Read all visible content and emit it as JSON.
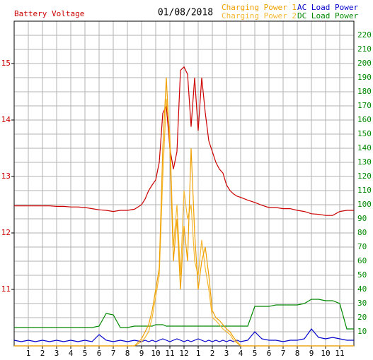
{
  "chart_data": {
    "type": "line",
    "date": "01/08/2018",
    "x": [
      0,
      0.5,
      1,
      1.5,
      2,
      2.5,
      3,
      3.5,
      4,
      4.5,
      5,
      5.5,
      6,
      6.5,
      7,
      7.5,
      8,
      8.5,
      9,
      9.25,
      9.5,
      9.75,
      10,
      10.25,
      10.5,
      10.75,
      11,
      11.25,
      11.5,
      11.75,
      12,
      12.25,
      12.5,
      12.75,
      13,
      13.25,
      13.5,
      13.75,
      14,
      14.25,
      14.5,
      14.75,
      15,
      15.25,
      15.5,
      15.75,
      16,
      16.5,
      17,
      17.5,
      18,
      18.5,
      19,
      19.5,
      20,
      20.5,
      21,
      21.5,
      22,
      22.5,
      23,
      23.5,
      24
    ],
    "xlim": [
      0,
      24
    ],
    "xticks": [
      1,
      2,
      3,
      4,
      5,
      6,
      7,
      8,
      9,
      10,
      11,
      12,
      {
        "value": 13,
        "label": "1"
      },
      {
        "value": 14,
        "label": "2"
      },
      {
        "value": 15,
        "label": "3"
      },
      {
        "value": 16,
        "label": "4"
      },
      {
        "value": 17,
        "label": "5"
      },
      {
        "value": 18,
        "label": "6"
      },
      {
        "value": 19,
        "label": "7"
      },
      {
        "value": 20,
        "label": "8"
      },
      {
        "value": 21,
        "label": "9"
      },
      {
        "value": 22,
        "label": "10"
      },
      {
        "value": 23,
        "label": "11"
      }
    ],
    "ylim": [
      10,
      15.75
    ],
    "yticks": [
      11,
      12,
      13,
      14,
      15
    ],
    "y2lim": [
      0,
      230
    ],
    "y2ticks": [
      10,
      20,
      30,
      40,
      50,
      60,
      70,
      80,
      90,
      100,
      110,
      120,
      130,
      140,
      150,
      160,
      170,
      180,
      190,
      200,
      210,
      220
    ],
    "grid": true,
    "series": [
      {
        "name": "Battery Voltage",
        "color": "#cc0000",
        "axis": "y",
        "values": [
          12.48,
          12.48,
          12.48,
          12.48,
          12.48,
          12.48,
          12.47,
          12.47,
          12.46,
          12.46,
          12.45,
          12.43,
          12.41,
          12.4,
          12.38,
          12.4,
          12.4,
          12.42,
          12.5,
          12.6,
          12.75,
          12.85,
          12.94,
          13.25,
          14.12,
          14.25,
          13.5,
          13.13,
          13.44,
          14.88,
          14.94,
          14.81,
          13.88,
          14.75,
          13.81,
          14.75,
          14.13,
          13.63,
          13.44,
          13.25,
          13.13,
          13.06,
          12.85,
          12.75,
          12.69,
          12.65,
          12.63,
          12.58,
          12.54,
          12.49,
          12.45,
          12.45,
          12.43,
          12.43,
          12.4,
          12.38,
          12.34,
          12.33,
          12.31,
          12.31,
          12.38,
          12.4,
          12.4
        ]
      },
      {
        "name": "Charging Power 1",
        "color": "#f0a000",
        "axis": "y2",
        "values": [
          0,
          0,
          0,
          0,
          0,
          0,
          0,
          0,
          0,
          0,
          0,
          0,
          0,
          0,
          0,
          0,
          0,
          0,
          5,
          10,
          15,
          25,
          40,
          55,
          140,
          190,
          140,
          60,
          90,
          40,
          85,
          60,
          140,
          80,
          40,
          60,
          70,
          50,
          25,
          20,
          18,
          15,
          12,
          10,
          6,
          3,
          0,
          0,
          0,
          0,
          0,
          0,
          0,
          0,
          0,
          0,
          0,
          0,
          0,
          0,
          0,
          0,
          0
        ]
      },
      {
        "name": "AC Load Power",
        "color": "#0000cc",
        "axis": "y2",
        "values": [
          4,
          3,
          4,
          3,
          4,
          3,
          4,
          3,
          4,
          3,
          4,
          3,
          8,
          4,
          3,
          4,
          3,
          4,
          3,
          4,
          3,
          4,
          3,
          4,
          5,
          4,
          3,
          4,
          5,
          4,
          3,
          4,
          3,
          4,
          5,
          4,
          3,
          4,
          3,
          4,
          3,
          4,
          3,
          4,
          3,
          4,
          3,
          4,
          10,
          5,
          4,
          4,
          3,
          4,
          4,
          5,
          12,
          6,
          5,
          6,
          5,
          4,
          4
        ]
      },
      {
        "name": "Charging Power 2",
        "color": "#f5b830",
        "axis": "y2",
        "values": [
          0,
          0,
          0,
          0,
          0,
          0,
          0,
          0,
          0,
          0,
          0,
          0,
          0,
          0,
          0,
          0,
          0,
          0,
          3,
          6,
          10,
          20,
          35,
          50,
          120,
          175,
          150,
          70,
          100,
          50,
          110,
          90,
          100,
          60,
          50,
          75,
          55,
          40,
          20,
          18,
          15,
          12,
          10,
          8,
          4,
          2,
          0,
          0,
          0,
          0,
          0,
          0,
          0,
          0,
          0,
          0,
          0,
          0,
          0,
          0,
          0,
          0,
          0
        ]
      },
      {
        "name": "DC Load Power",
        "color": "#008800",
        "axis": "y2",
        "values": [
          13,
          13,
          13,
          13,
          13,
          13,
          13,
          13,
          13,
          13,
          13,
          13,
          14,
          23,
          22,
          13,
          13,
          14,
          14,
          14,
          14,
          14,
          15,
          15,
          15,
          14,
          14,
          14,
          14,
          14,
          14,
          14,
          14,
          14,
          14,
          14,
          14,
          14,
          14,
          14,
          14,
          14,
          14,
          14,
          14,
          14,
          14,
          14,
          28,
          28,
          28,
          29,
          29,
          29,
          29,
          30,
          33,
          33,
          32,
          32,
          30,
          12,
          12
        ]
      }
    ]
  }
}
